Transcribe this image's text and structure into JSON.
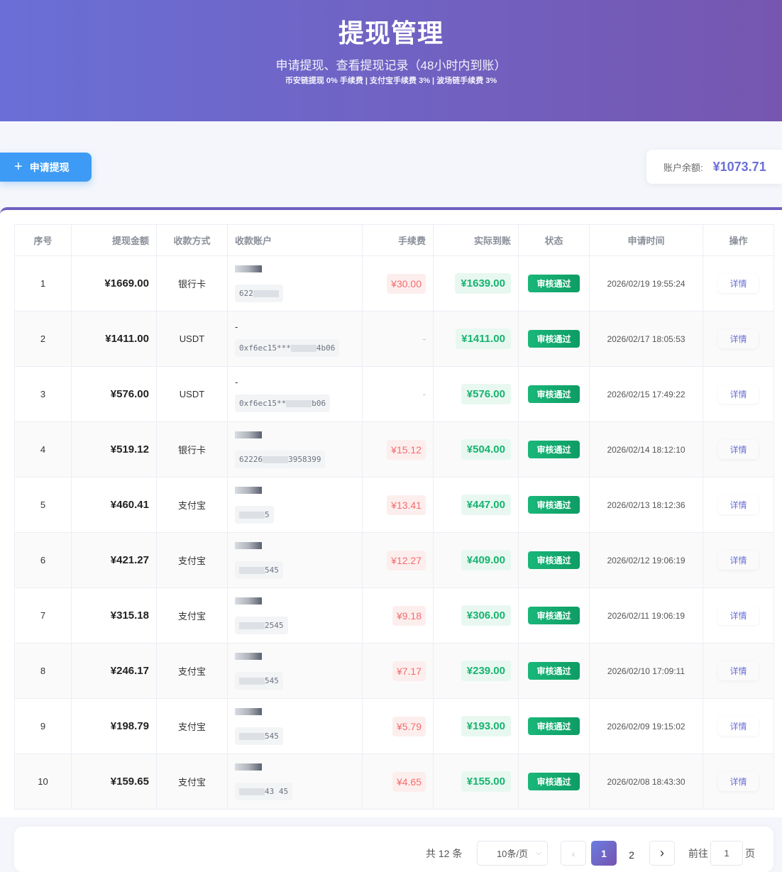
{
  "header": {
    "title": "提现管理",
    "subtitle": "申请提现、查看提现记录（48小时内到账）",
    "fees": "币安链提现 0% 手续费 | 支付宝手续费 3% | 波场链手续费 3%"
  },
  "toolbar": {
    "apply_label": "申请提现",
    "balance_label": "账户余额:",
    "balance_value": "¥1073.71"
  },
  "table": {
    "columns": [
      "序号",
      "提现金额",
      "收款方式",
      "收款账户",
      "手续费",
      "实际到账",
      "状态",
      "申请时间",
      "操作"
    ],
    "rows": [
      {
        "no": "1",
        "amount": "¥1669.00",
        "method": "银行卡",
        "acc_name": "",
        "acc_pre": "622",
        "acc_suf": "",
        "fee": "¥30.00",
        "actual": "¥1639.00",
        "status": "审核通过",
        "time": "2026/02/19 19:55:24",
        "action": "详情"
      },
      {
        "no": "2",
        "amount": "¥1411.00",
        "method": "USDT",
        "acc_name": "-",
        "acc_pre": "0xf6ec15***",
        "acc_suf": "4b06",
        "fee": "-",
        "actual": "¥1411.00",
        "status": "审核通过",
        "time": "2026/02/17 18:05:53",
        "action": "详情"
      },
      {
        "no": "3",
        "amount": "¥576.00",
        "method": "USDT",
        "acc_name": "-",
        "acc_pre": "0xf6ec15**",
        "acc_suf": "b06",
        "fee": "-",
        "actual": "¥576.00",
        "status": "审核通过",
        "time": "2026/02/15 17:49:22",
        "action": "详情"
      },
      {
        "no": "4",
        "amount": "¥519.12",
        "method": "银行卡",
        "acc_name": "",
        "acc_pre": "62226",
        "acc_suf": "3958399",
        "fee": "¥15.12",
        "actual": "¥504.00",
        "status": "审核通过",
        "time": "2026/02/14 18:12:10",
        "action": "详情"
      },
      {
        "no": "5",
        "amount": "¥460.41",
        "method": "支付宝",
        "acc_name": "",
        "acc_pre": "",
        "acc_suf": "5",
        "fee": "¥13.41",
        "actual": "¥447.00",
        "status": "审核通过",
        "time": "2026/02/13 18:12:36",
        "action": "详情"
      },
      {
        "no": "6",
        "amount": "¥421.27",
        "method": "支付宝",
        "acc_name": "",
        "acc_pre": "",
        "acc_suf": "545",
        "fee": "¥12.27",
        "actual": "¥409.00",
        "status": "审核通过",
        "time": "2026/02/12 19:06:19",
        "action": "详情"
      },
      {
        "no": "7",
        "amount": "¥315.18",
        "method": "支付宝",
        "acc_name": "",
        "acc_pre": "",
        "acc_suf": "2545",
        "fee": "¥9.18",
        "actual": "¥306.00",
        "status": "审核通过",
        "time": "2026/02/11 19:06:19",
        "action": "详情"
      },
      {
        "no": "8",
        "amount": "¥246.17",
        "method": "支付宝",
        "acc_name": "",
        "acc_pre": "",
        "acc_suf": "545",
        "fee": "¥7.17",
        "actual": "¥239.00",
        "status": "审核通过",
        "time": "2026/02/10 17:09:11",
        "action": "详情"
      },
      {
        "no": "9",
        "amount": "¥198.79",
        "method": "支付宝",
        "acc_name": "",
        "acc_pre": "",
        "acc_suf": "545",
        "fee": "¥5.79",
        "actual": "¥193.00",
        "status": "审核通过",
        "time": "2026/02/09 19:15:02",
        "action": "详情"
      },
      {
        "no": "10",
        "amount": "¥159.65",
        "method": "支付宝",
        "acc_name": "",
        "acc_pre": "",
        "acc_suf": "43  45",
        "fee": "¥4.65",
        "actual": "¥155.00",
        "status": "审核通过",
        "time": "2026/02/08 18:43:30",
        "action": "详情"
      }
    ]
  },
  "pagination": {
    "total": "共 12 条",
    "page_size": "10条/页",
    "pages": [
      "1",
      "2"
    ],
    "current": "1",
    "goto_label": "前往",
    "goto_value": "1",
    "goto_suffix": "页"
  }
}
